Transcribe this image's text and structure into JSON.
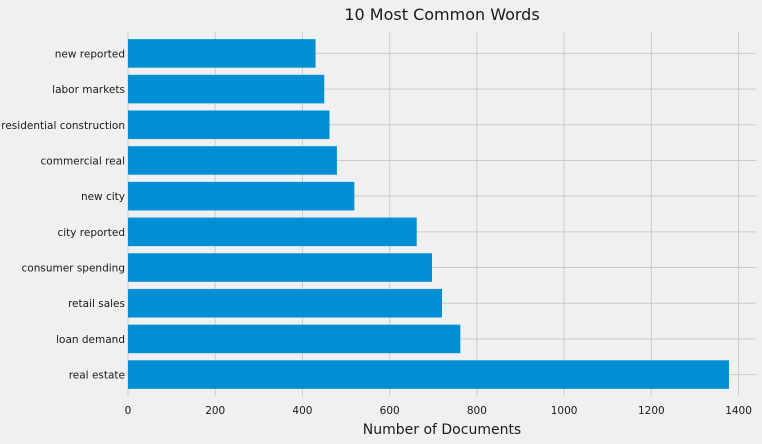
{
  "chart_data": {
    "type": "bar",
    "orientation": "horizontal",
    "title": "10 Most Common Words",
    "xlabel": "Number of Documents",
    "ylabel": "",
    "categories": [
      "real estate",
      "loan demand",
      "retail sales",
      "consumer spending",
      "city reported",
      "new city",
      "commercial real",
      "residential construction",
      "labor markets",
      "new reported"
    ],
    "values": [
      1378,
      762,
      720,
      697,
      662,
      519,
      479,
      462,
      450,
      430
    ],
    "xlim": [
      0,
      1440
    ],
    "xticks": [
      0,
      200,
      400,
      600,
      800,
      1000,
      1200,
      1400
    ],
    "grid": true,
    "legend": "none",
    "colors": {
      "bar": "#008fd5",
      "background": "#f0f0f0",
      "grid": "#cbcbcb"
    }
  }
}
